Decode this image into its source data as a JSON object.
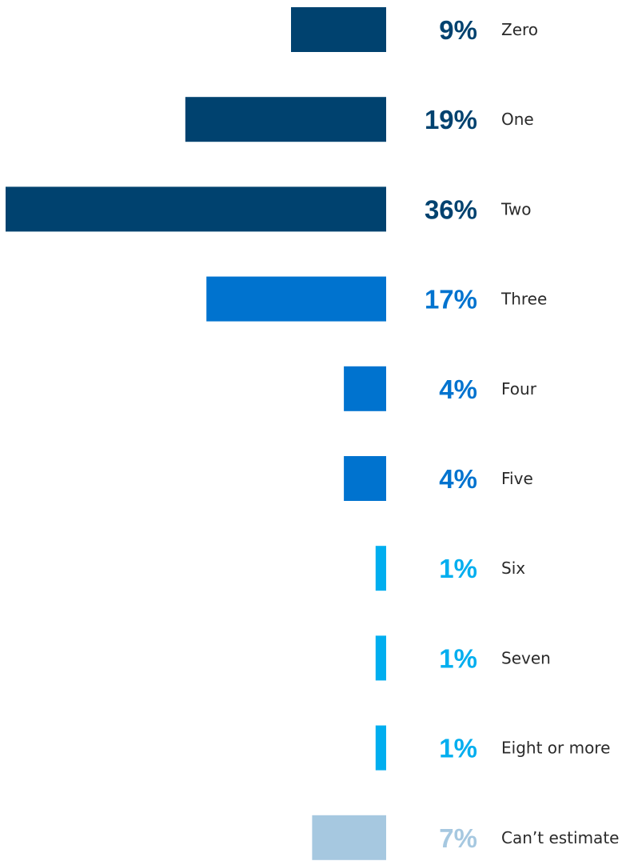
{
  "chart_data": {
    "type": "bar",
    "orientation": "horizontal",
    "categories": [
      "Zero",
      "One",
      "Two",
      "Three",
      "Four",
      "Five",
      "Six",
      "Seven",
      "Eight or more",
      "Can’t estimate"
    ],
    "values": [
      9,
      19,
      36,
      17,
      4,
      4,
      1,
      1,
      1,
      7
    ],
    "value_labels": [
      "9%",
      "19%",
      "36%",
      "17%",
      "4%",
      "4%",
      "1%",
      "1%",
      "1%",
      "7%"
    ],
    "unit": "%",
    "xlim": [
      0,
      36
    ],
    "grid": false,
    "legend": "none",
    "colors": [
      "#00426f",
      "#00426f",
      "#00426f",
      "#0073cf",
      "#0073cf",
      "#0073cf",
      "#00aeef",
      "#00aeef",
      "#00aeef",
      "#a6c8e0"
    ]
  }
}
